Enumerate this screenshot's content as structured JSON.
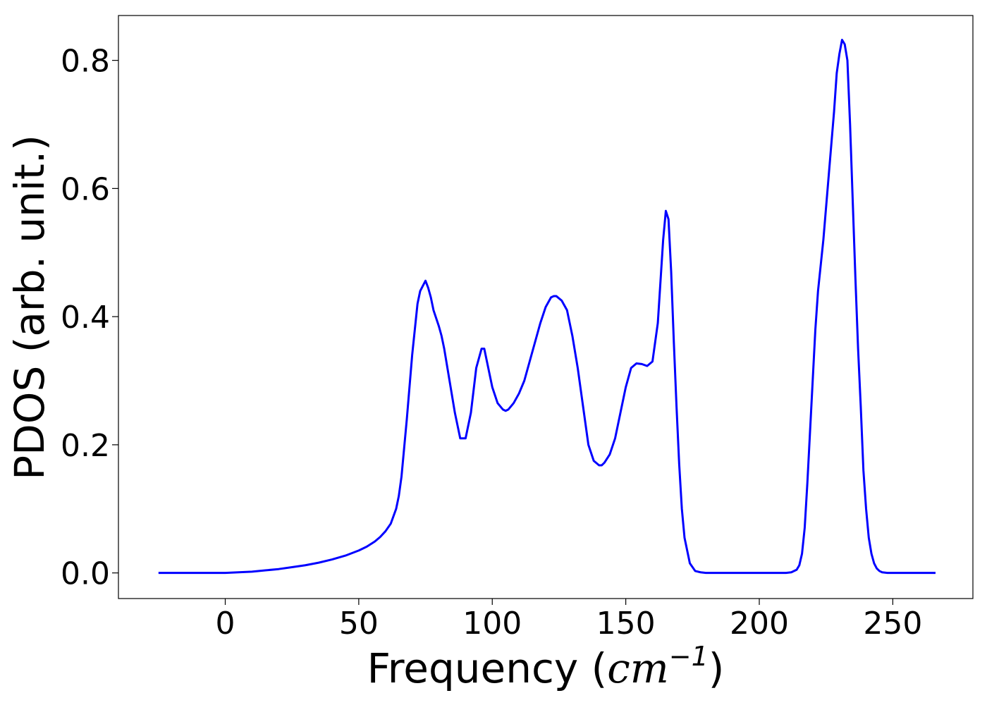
{
  "chart_data": {
    "type": "line",
    "title": "",
    "xlabel_prefix": "Frequency (",
    "xlabel_unit": "cm",
    "xlabel_exponent": "−1",
    "xlabel_suffix": ")",
    "ylabel": "PDOS (arb. unit.)",
    "xlim": [
      -40,
      280
    ],
    "ylim": [
      -0.04,
      0.87
    ],
    "xticks": [
      0,
      50,
      100,
      150,
      200,
      250
    ],
    "yticks": [
      0.0,
      0.2,
      0.4,
      0.6,
      0.8
    ],
    "xtick_labels": [
      "0",
      "50",
      "100",
      "150",
      "200",
      "250"
    ],
    "ytick_labels": [
      "0.0",
      "0.2",
      "0.4",
      "0.6",
      "0.8"
    ],
    "grid": false,
    "legend": "none",
    "series": [
      {
        "color": "#0000ff",
        "x": [
          -25,
          -10,
          0,
          5,
          10,
          15,
          20,
          25,
          30,
          35,
          40,
          45,
          50,
          53,
          56,
          58,
          60,
          62,
          64,
          65,
          66,
          68,
          70,
          72,
          73,
          75,
          76,
          77,
          78,
          80,
          81,
          82,
          84,
          86,
          87,
          88,
          90,
          92,
          94,
          96,
          97,
          98,
          100,
          102,
          104,
          105,
          106,
          108,
          110,
          112,
          114,
          116,
          118,
          120,
          122,
          123,
          124,
          126,
          128,
          130,
          132,
          134,
          136,
          138,
          140,
          141,
          142,
          144,
          146,
          148,
          150,
          152,
          154,
          156,
          158,
          160,
          162,
          164,
          165,
          166,
          167,
          168,
          169,
          170,
          171,
          172,
          174,
          176,
          178,
          180,
          185,
          190,
          200,
          210,
          212,
          214,
          215,
          216,
          217,
          218,
          219,
          220,
          221,
          222,
          224,
          226,
          228,
          229,
          230,
          231,
          232,
          233,
          234,
          235,
          236,
          237,
          238,
          239,
          240,
          241,
          242,
          243,
          244,
          245,
          246,
          248,
          250,
          255,
          260,
          266
        ],
        "y": [
          0.0,
          0.0,
          0.0,
          0.001,
          0.002,
          0.004,
          0.006,
          0.009,
          0.012,
          0.016,
          0.021,
          0.027,
          0.035,
          0.041,
          0.049,
          0.056,
          0.065,
          0.077,
          0.1,
          0.12,
          0.15,
          0.24,
          0.34,
          0.42,
          0.44,
          0.456,
          0.445,
          0.43,
          0.41,
          0.385,
          0.37,
          0.35,
          0.3,
          0.25,
          0.23,
          0.21,
          0.21,
          0.25,
          0.32,
          0.35,
          0.35,
          0.33,
          0.29,
          0.265,
          0.255,
          0.253,
          0.255,
          0.265,
          0.28,
          0.3,
          0.33,
          0.36,
          0.39,
          0.415,
          0.43,
          0.432,
          0.432,
          0.425,
          0.41,
          0.37,
          0.32,
          0.26,
          0.2,
          0.175,
          0.168,
          0.168,
          0.172,
          0.185,
          0.21,
          0.25,
          0.29,
          0.32,
          0.327,
          0.326,
          0.323,
          0.33,
          0.39,
          0.52,
          0.565,
          0.552,
          0.47,
          0.36,
          0.26,
          0.17,
          0.1,
          0.055,
          0.015,
          0.003,
          0.001,
          0.0,
          0.0,
          0.0,
          0.0,
          0.0,
          0.001,
          0.005,
          0.012,
          0.03,
          0.07,
          0.14,
          0.22,
          0.3,
          0.38,
          0.44,
          0.52,
          0.62,
          0.72,
          0.78,
          0.81,
          0.832,
          0.825,
          0.8,
          0.7,
          0.58,
          0.46,
          0.35,
          0.26,
          0.16,
          0.1,
          0.055,
          0.03,
          0.015,
          0.007,
          0.003,
          0.001,
          0.0,
          0.0,
          0.0,
          0.0,
          0.0
        ]
      }
    ]
  }
}
